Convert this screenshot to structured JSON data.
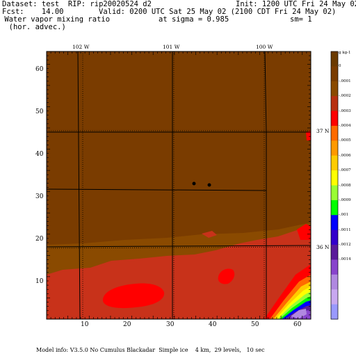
{
  "header": {
    "dataset": "Dataset: test  RIP: rip20020524 d2",
    "init": "Init: 1200 UTC Fri 24 May 02",
    "fcst": "Fcst:    14.00",
    "valid": "Valid: 0200 UTC Sat 25 May 02 (2100 CDT Fri 24 May 02)",
    "field_line1": " Water vapor mixing ratio",
    "sigma": "at sigma = 0.985",
    "sm": "sm= 1",
    "field_line2": "  (hor. advec.)"
  },
  "map": {
    "x_ticks": [
      "10",
      "20",
      "30",
      "40",
      "50",
      "60"
    ],
    "y_ticks": [
      "10",
      "20",
      "30",
      "40",
      "50",
      "60"
    ],
    "longitude_labels": [
      "102 W",
      "101 W",
      "100 W"
    ],
    "latitude_labels": [
      "37 N",
      "36 N"
    ],
    "colors": {
      "zero": "#7a3c00",
      "neg1": "#8a4a00",
      "neg2": "#d4280f",
      "neg3": "#ff0000",
      "neg4": "#ff6a00",
      "neg5": "#ff9900",
      "neg6": "#ffcc00",
      "neg7": "#ffff00",
      "neg8": "#99ff33",
      "neg9": "#00ff00",
      "neg10": "#0000ff",
      "neg11": "#5a1a9a",
      "neg12": "#8844cc",
      "neg13": "#b088e0",
      "neg14": "#c8a8f0"
    }
  },
  "colorbar": {
    "unit_label": "g kg-1",
    "labels": [
      "0",
      "-.0001",
      "-.0002",
      "-.0003",
      "-.0004",
      "-.0005",
      "-.0006",
      "-.0007",
      "-.0008",
      "-.0009",
      "-.001",
      "-.0011",
      "-.0012",
      "-.0014"
    ],
    "colors": [
      "#6b3a00",
      "#7a3c00",
      "#8a4a00",
      "#b83010",
      "#ff0000",
      "#ff6a00",
      "#ff9900",
      "#ffcc00",
      "#ffff00",
      "#99ff33",
      "#00ff00",
      "#0000ff",
      "#3300cc",
      "#5a1a9a",
      "#8844cc",
      "#b088e0",
      "#c8a8f0",
      "#9999ff"
    ]
  },
  "footer": "Model info: V3.5.0 No Cumulus Blackadar  Simple ice    4 km,  29 levels,   10 sec"
}
